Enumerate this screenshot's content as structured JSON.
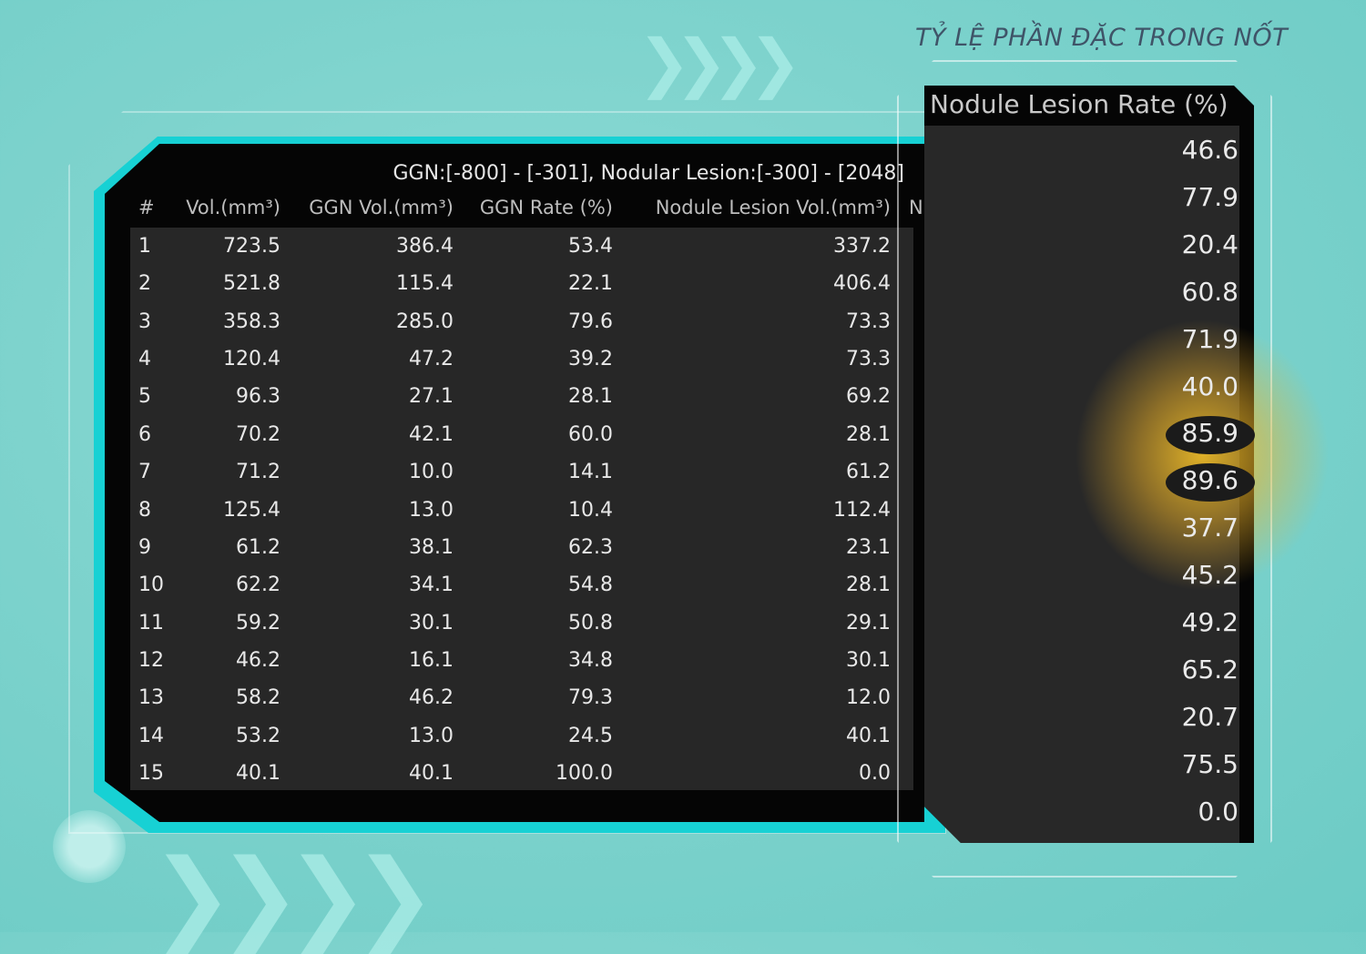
{
  "heading": "TỶ LỆ PHẦN ĐẶC TRONG NỐT",
  "table": {
    "title": "GGN:[-800] - [-301], Nodular Lesion:[-300] - [2048]",
    "columns": [
      "#",
      "Vol.(mm³)",
      "GGN Vol.(mm³)",
      "GGN Rate (%)",
      "Nodule Lesion Vol.(mm³)",
      "N"
    ],
    "rows": [
      [
        "1",
        "723.5",
        "386.4",
        "53.4",
        "337.2"
      ],
      [
        "2",
        "521.8",
        "115.4",
        "22.1",
        "406.4"
      ],
      [
        "3",
        "358.3",
        "285.0",
        "79.6",
        "73.3"
      ],
      [
        "4",
        "120.4",
        "47.2",
        "39.2",
        "73.3"
      ],
      [
        "5",
        "96.3",
        "27.1",
        "28.1",
        "69.2"
      ],
      [
        "6",
        "70.2",
        "42.1",
        "60.0",
        "28.1"
      ],
      [
        "7",
        "71.2",
        "10.0",
        "14.1",
        "61.2"
      ],
      [
        "8",
        "125.4",
        "13.0",
        "10.4",
        "112.4"
      ],
      [
        "9",
        "61.2",
        "38.1",
        "62.3",
        "23.1"
      ],
      [
        "10",
        "62.2",
        "34.1",
        "54.8",
        "28.1"
      ],
      [
        "11",
        "59.2",
        "30.1",
        "50.8",
        "29.1"
      ],
      [
        "12",
        "46.2",
        "16.1",
        "34.8",
        "30.1"
      ],
      [
        "13",
        "58.2",
        "46.2",
        "79.3",
        "12.0"
      ],
      [
        "14",
        "53.2",
        "13.0",
        "24.5",
        "40.1"
      ],
      [
        "15",
        "40.1",
        "40.1",
        "100.0",
        "0.0"
      ]
    ]
  },
  "rate_panel": {
    "title": "Nodule Lesion Rate (%)",
    "values": [
      "46.6",
      "77.9",
      "20.4",
      "60.8",
      "71.9",
      "40.0",
      "85.9",
      "89.6",
      "37.7",
      "45.2",
      "49.2",
      "65.2",
      "20.7",
      "75.5",
      "0.0"
    ],
    "highlighted": [
      "85.9",
      "89.6"
    ],
    "highlight_color": "#f5c232"
  },
  "colors": {
    "background": "#7ed3cd",
    "accent": "#17d1d4",
    "heading": "#3f5468"
  }
}
